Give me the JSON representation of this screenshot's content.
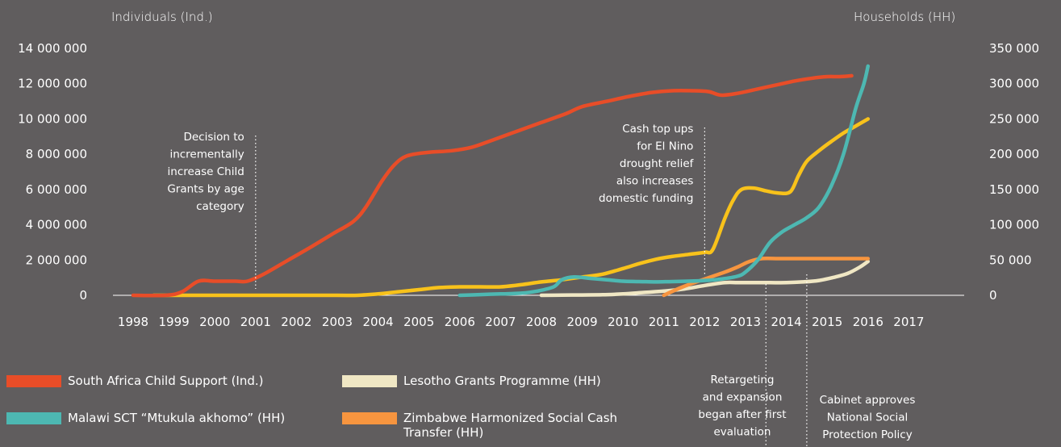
{
  "chart_data": {
    "type": "line",
    "title": "",
    "left_axis_title": "Individuals (Ind.)",
    "right_axis_title": "Households (HH)",
    "x_ticks": [
      "1998",
      "1999",
      "2000",
      "2001",
      "2002",
      "2003",
      "2004",
      "2005",
      "2006",
      "2007",
      "2008",
      "2009",
      "2010",
      "2011",
      "2012",
      "2013",
      "2014",
      "2015",
      "2016",
      "2017"
    ],
    "y_left_ticks": [
      "0",
      "2 000 000",
      "4 000 000",
      "6 000 000",
      "8 000 000",
      "10 000 000",
      "12 000 000",
      "14 000 000"
    ],
    "y_left_values": [
      0,
      2000000,
      4000000,
      6000000,
      8000000,
      10000000,
      12000000,
      14000000
    ],
    "y_right_ticks": [
      "0",
      "50 000",
      "100 000",
      "150 000",
      "200 000",
      "250 000",
      "300 000",
      "350 000"
    ],
    "y_right_values": [
      0,
      50000,
      100000,
      150000,
      200000,
      250000,
      300000,
      350000
    ],
    "ylim_left": [
      0,
      14000000
    ],
    "ylim_right": [
      0,
      350000
    ],
    "xlim": [
      1998,
      2017
    ],
    "series": [
      {
        "name": "South Africa Child Support (Ind.)",
        "axis": "left",
        "color": "#e84d28",
        "points": [
          [
            1998.0,
            0
          ],
          [
            1998.8,
            0
          ],
          [
            1999.2,
            200000
          ],
          [
            1999.6,
            800000
          ],
          [
            2000.0,
            800000
          ],
          [
            2000.5,
            800000
          ],
          [
            2000.8,
            800000
          ],
          [
            2001.2,
            1200000
          ],
          [
            2001.8,
            2000000
          ],
          [
            2002.4,
            2800000
          ],
          [
            2002.9,
            3500000
          ],
          [
            2003.4,
            4200000
          ],
          [
            2003.7,
            5000000
          ],
          [
            2004.1,
            6500000
          ],
          [
            2004.4,
            7400000
          ],
          [
            2004.7,
            7900000
          ],
          [
            2005.2,
            8100000
          ],
          [
            2005.8,
            8200000
          ],
          [
            2006.3,
            8400000
          ],
          [
            2006.8,
            8800000
          ],
          [
            2007.4,
            9300000
          ],
          [
            2008.0,
            9800000
          ],
          [
            2008.6,
            10300000
          ],
          [
            2009.0,
            10700000
          ],
          [
            2009.6,
            11000000
          ],
          [
            2010.2,
            11300000
          ],
          [
            2010.7,
            11500000
          ],
          [
            2011.2,
            11600000
          ],
          [
            2011.7,
            11600000
          ],
          [
            2012.1,
            11550000
          ],
          [
            2012.4,
            11350000
          ],
          [
            2012.8,
            11450000
          ],
          [
            2013.3,
            11700000
          ],
          [
            2013.8,
            11950000
          ],
          [
            2014.2,
            12150000
          ],
          [
            2014.6,
            12300000
          ],
          [
            2015.0,
            12400000
          ],
          [
            2015.3,
            12400000
          ],
          [
            2015.6,
            12450000
          ]
        ]
      },
      {
        "name": "Malawi SCT “Mtukula akhomo” (HH)",
        "axis": "right",
        "color": "#4db8b2",
        "points": [
          [
            2006.0,
            0
          ],
          [
            2006.5,
            1000
          ],
          [
            2007.0,
            2000
          ],
          [
            2007.5,
            3000
          ],
          [
            2007.9,
            6000
          ],
          [
            2008.3,
            12000
          ],
          [
            2008.5,
            22000
          ],
          [
            2008.8,
            26000
          ],
          [
            2009.2,
            24000
          ],
          [
            2009.6,
            22000
          ],
          [
            2010.0,
            20000
          ],
          [
            2010.4,
            19500
          ],
          [
            2010.8,
            19000
          ],
          [
            2011.2,
            19500
          ],
          [
            2011.6,
            20000
          ],
          [
            2012.0,
            21000
          ],
          [
            2012.4,
            23000
          ],
          [
            2012.8,
            27000
          ],
          [
            2013.0,
            33000
          ],
          [
            2013.3,
            50000
          ],
          [
            2013.6,
            75000
          ],
          [
            2013.9,
            90000
          ],
          [
            2014.2,
            100000
          ],
          [
            2014.5,
            110000
          ],
          [
            2014.8,
            125000
          ],
          [
            2015.1,
            155000
          ],
          [
            2015.4,
            200000
          ],
          [
            2015.7,
            265000
          ],
          [
            2015.9,
            300000
          ],
          [
            2016.0,
            325000
          ]
        ]
      },
      {
        "name": "Lesotho Grants Programme (HH)",
        "axis": "right",
        "color": "#f0e7c4",
        "points": [
          [
            2008.0,
            0
          ],
          [
            2008.5,
            300
          ],
          [
            2009.0,
            500
          ],
          [
            2009.5,
            800
          ],
          [
            2010.0,
            2000
          ],
          [
            2010.5,
            4000
          ],
          [
            2011.0,
            6000
          ],
          [
            2011.5,
            9000
          ],
          [
            2012.0,
            14000
          ],
          [
            2012.5,
            18000
          ],
          [
            2012.8,
            18000
          ],
          [
            2013.2,
            18000
          ],
          [
            2013.6,
            18000
          ],
          [
            2014.0,
            18000
          ],
          [
            2014.4,
            19000
          ],
          [
            2014.8,
            21000
          ],
          [
            2015.2,
            26000
          ],
          [
            2015.5,
            31000
          ],
          [
            2015.8,
            40000
          ],
          [
            2016.0,
            48000
          ]
        ]
      },
      {
        "name": "Zimbabwe Harmonized Social Cash Transfer (HH)",
        "axis": "right",
        "color": "#f7953f",
        "points": [
          [
            2011.0,
            0
          ],
          [
            2011.3,
            8000
          ],
          [
            2011.6,
            15000
          ],
          [
            2011.9,
            21000
          ],
          [
            2012.2,
            27000
          ],
          [
            2012.5,
            33000
          ],
          [
            2012.8,
            40000
          ],
          [
            2013.1,
            48000
          ],
          [
            2013.4,
            52000
          ],
          [
            2013.8,
            52000
          ],
          [
            2014.2,
            52000
          ],
          [
            2014.6,
            52000
          ],
          [
            2015.0,
            52000
          ],
          [
            2015.4,
            52000
          ],
          [
            2015.8,
            52000
          ],
          [
            2016.0,
            52000
          ]
        ]
      },
      {
        "name": "",
        "axis": "right",
        "color": "#f8c21b",
        "points": [
          [
            1998.5,
            0
          ],
          [
            1999.0,
            0
          ],
          [
            2000.0,
            0
          ],
          [
            2001.0,
            0
          ],
          [
            2002.0,
            0
          ],
          [
            2003.0,
            0
          ],
          [
            2003.5,
            0
          ],
          [
            2004.0,
            2000
          ],
          [
            2004.5,
            5000
          ],
          [
            2005.0,
            8000
          ],
          [
            2005.5,
            11000
          ],
          [
            2006.0,
            12000
          ],
          [
            2006.5,
            12000
          ],
          [
            2007.0,
            12000
          ],
          [
            2007.5,
            15000
          ],
          [
            2008.0,
            19000
          ],
          [
            2008.5,
            22000
          ],
          [
            2009.0,
            26000
          ],
          [
            2009.5,
            30000
          ],
          [
            2010.0,
            38000
          ],
          [
            2010.4,
            45000
          ],
          [
            2010.8,
            51000
          ],
          [
            2011.2,
            55000
          ],
          [
            2011.6,
            58000
          ],
          [
            2012.0,
            61000
          ],
          [
            2012.2,
            65000
          ],
          [
            2012.5,
            110000
          ],
          [
            2012.7,
            135000
          ],
          [
            2012.9,
            150000
          ],
          [
            2013.2,
            152000
          ],
          [
            2013.5,
            148000
          ],
          [
            2013.8,
            145000
          ],
          [
            2014.1,
            147000
          ],
          [
            2014.3,
            170000
          ],
          [
            2014.5,
            190000
          ],
          [
            2014.8,
            205000
          ],
          [
            2015.1,
            218000
          ],
          [
            2015.4,
            230000
          ],
          [
            2015.7,
            240000
          ],
          [
            2016.0,
            250000
          ]
        ]
      }
    ],
    "annotations": [
      {
        "id": "child-grants",
        "x": 2001.0,
        "lines": [
          "Decision to",
          "incrementally",
          "increase Child",
          "Grants by age",
          "category"
        ]
      },
      {
        "id": "el-nino",
        "x": 2012.0,
        "lines": [
          "Cash top ups",
          "for El Nino",
          "drought relief",
          "also increases",
          "domestic funding"
        ]
      },
      {
        "id": "retargeting",
        "x": 2013.5,
        "lines": [
          "Retargeting",
          "and expansion",
          "began after first",
          "evaluation"
        ]
      },
      {
        "id": "cabinet",
        "x": 2014.5,
        "lines": [
          "Cabinet approves",
          "National Social",
          "Protection Policy"
        ]
      }
    ],
    "legend": [
      {
        "label": "South Africa Child Support (Ind.)",
        "color": "#e84d28"
      },
      {
        "label": "Malawi SCT “Mtukula akhomo” (HH)",
        "color": "#4db8b2"
      },
      {
        "label": "Lesotho Grants Programme (HH)",
        "color": "#f0e7c4"
      },
      {
        "label": "Zimbabwe Harmonized Social Cash Transfer (HH)",
        "color": "#f7953f"
      }
    ]
  }
}
